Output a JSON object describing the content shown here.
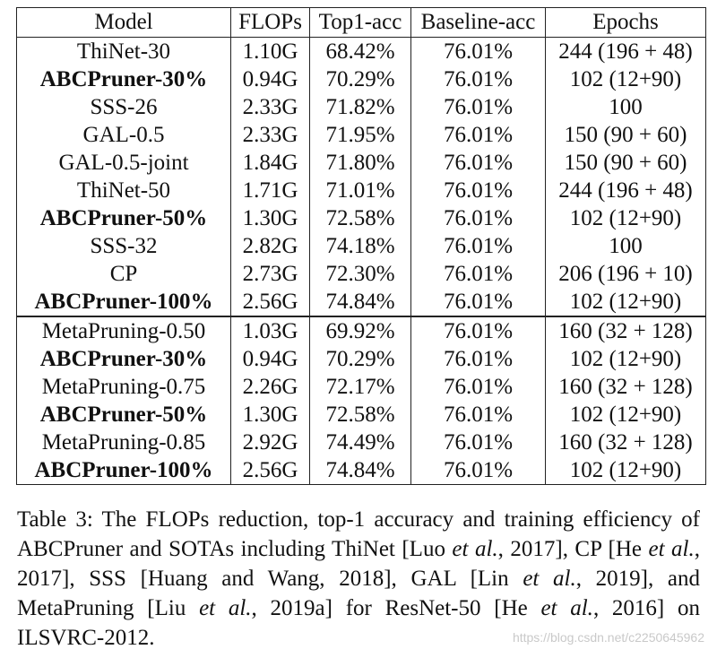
{
  "table": {
    "headers": [
      "Model",
      "FLOPs",
      "Top1-acc",
      "Baseline-acc",
      "Epochs"
    ],
    "group1": [
      {
        "model": "ThiNet-30",
        "flops": "1.10G",
        "top1": "68.42%",
        "baseline": "76.01%",
        "epochs": "244 (196 + 48)",
        "bold": false
      },
      {
        "model": "ABCPruner-30%",
        "flops": "0.94G",
        "top1": "70.29%",
        "baseline": "76.01%",
        "epochs": "102 (12+90)",
        "bold": true
      },
      {
        "model": "SSS-26",
        "flops": "2.33G",
        "top1": "71.82%",
        "baseline": "76.01%",
        "epochs": "100",
        "bold": false
      },
      {
        "model": "GAL-0.5",
        "flops": "2.33G",
        "top1": "71.95%",
        "baseline": "76.01%",
        "epochs": "150 (90 + 60)",
        "bold": false
      },
      {
        "model": "GAL-0.5-joint",
        "flops": "1.84G",
        "top1": "71.80%",
        "baseline": "76.01%",
        "epochs": "150 (90 + 60)",
        "bold": false
      },
      {
        "model": "ThiNet-50",
        "flops": "1.71G",
        "top1": "71.01%",
        "baseline": "76.01%",
        "epochs": "244 (196 + 48)",
        "bold": false
      },
      {
        "model": "ABCPruner-50%",
        "flops": "1.30G",
        "top1": "72.58%",
        "baseline": "76.01%",
        "epochs": "102 (12+90)",
        "bold": true
      },
      {
        "model": "SSS-32",
        "flops": "2.82G",
        "top1": "74.18%",
        "baseline": "76.01%",
        "epochs": "100",
        "bold": false
      },
      {
        "model": "CP",
        "flops": "2.73G",
        "top1": "72.30%",
        "baseline": "76.01%",
        "epochs": "206 (196 + 10)",
        "bold": false
      },
      {
        "model": "ABCPruner-100%",
        "flops": "2.56G",
        "top1": "74.84%",
        "baseline": "76.01%",
        "epochs": "102 (12+90)",
        "bold": true
      }
    ],
    "group2": [
      {
        "model": "MetaPruning-0.50",
        "flops": "1.03G",
        "top1": "69.92%",
        "baseline": "76.01%",
        "epochs": "160 (32 + 128)",
        "bold": false
      },
      {
        "model": "ABCPruner-30%",
        "flops": "0.94G",
        "top1": "70.29%",
        "baseline": "76.01%",
        "epochs": "102 (12+90)",
        "bold": true
      },
      {
        "model": "MetaPruning-0.75",
        "flops": "2.26G",
        "top1": "72.17%",
        "baseline": "76.01%",
        "epochs": "160 (32 + 128)",
        "bold": false
      },
      {
        "model": "ABCPruner-50%",
        "flops": "1.30G",
        "top1": "72.58%",
        "baseline": "76.01%",
        "epochs": "102 (12+90)",
        "bold": true
      },
      {
        "model": "MetaPruning-0.85",
        "flops": "2.92G",
        "top1": "74.49%",
        "baseline": "76.01%",
        "epochs": "160 (32 + 128)",
        "bold": false
      },
      {
        "model": "ABCPruner-100%",
        "flops": "2.56G",
        "top1": "74.84%",
        "baseline": "76.01%",
        "epochs": "102 (12+90)",
        "bold": true
      }
    ]
  },
  "caption": {
    "segments": [
      {
        "t": "Table 3:  The FLOPs reduction, top-1 accuracy and training efficiency of ABCPruner and SOTAs including ThiNet [Luo ",
        "i": false
      },
      {
        "t": "et al.",
        "i": true
      },
      {
        "t": ", 2017], CP [He ",
        "i": false
      },
      {
        "t": "et al.",
        "i": true
      },
      {
        "t": ", 2017], SSS [Huang and Wang, 2018], GAL [Lin ",
        "i": false
      },
      {
        "t": "et al.",
        "i": true
      },
      {
        "t": ", 2019], and MetaPruning [Liu ",
        "i": false
      },
      {
        "t": "et al.",
        "i": true
      },
      {
        "t": ", 2019a] for ResNet-50 [He ",
        "i": false
      },
      {
        "t": "et al.",
        "i": true
      },
      {
        "t": ", 2016] on ILSVRC-2012.",
        "i": false
      }
    ]
  },
  "watermark": "https://blog.csdn.net/c2250645962"
}
